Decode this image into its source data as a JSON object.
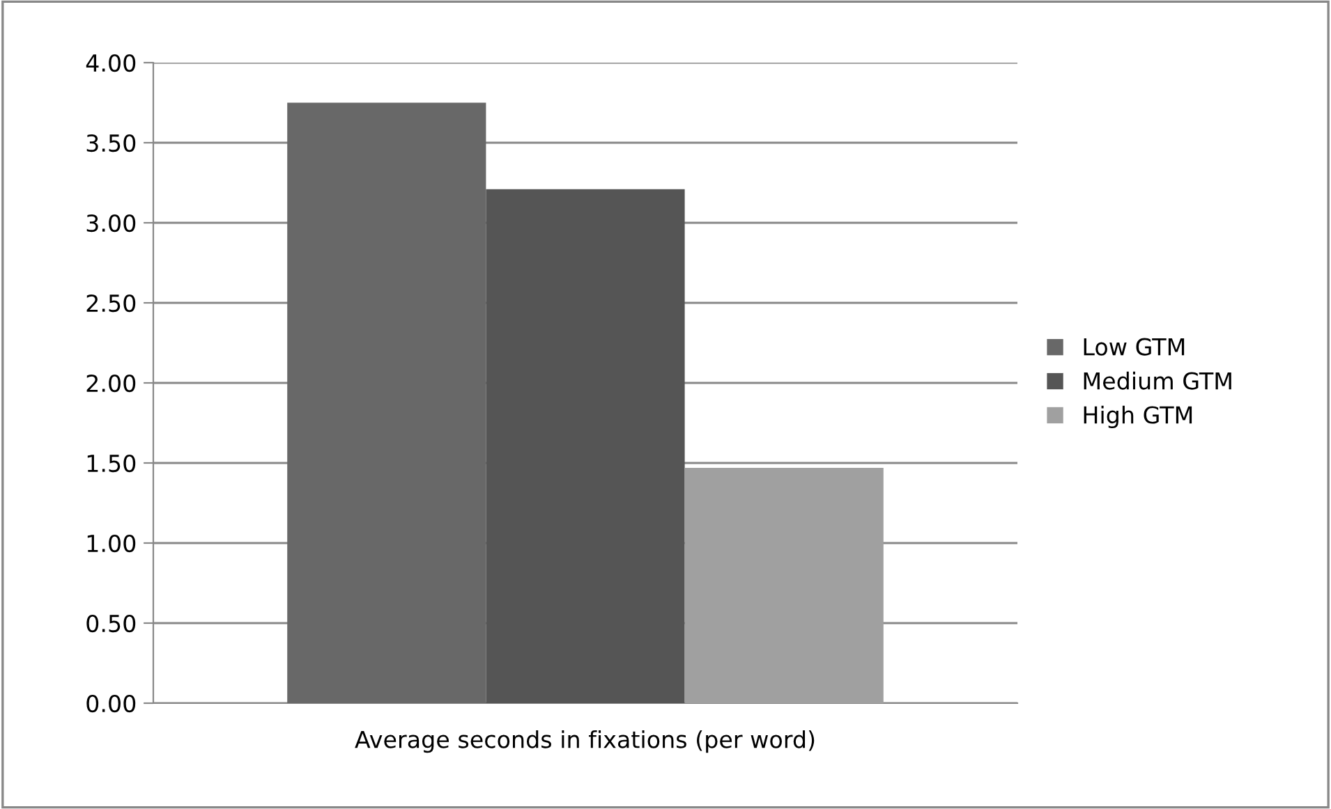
{
  "chart_data": {
    "type": "bar",
    "categories": [
      "Average seconds in fixations (per word)"
    ],
    "series": [
      {
        "name": "Low GTM",
        "color": "#686868",
        "values": [
          3.75
        ]
      },
      {
        "name": "Medium GTM",
        "color": "#555555",
        "values": [
          3.21
        ]
      },
      {
        "name": "High GTM",
        "color": "#a0a0a0",
        "values": [
          1.47
        ]
      }
    ],
    "ylim": [
      0,
      4
    ],
    "yticks": [
      {
        "value": 0,
        "label": "0.00"
      },
      {
        "value": 0.5,
        "label": "0.50"
      },
      {
        "value": 1,
        "label": "1.00"
      },
      {
        "value": 1.5,
        "label": "1.50"
      },
      {
        "value": 2,
        "label": "2.00"
      },
      {
        "value": 2.5,
        "label": "2.50"
      },
      {
        "value": 3,
        "label": "3.00"
      },
      {
        "value": 3.5,
        "label": "3.50"
      },
      {
        "value": 4,
        "label": "4.00"
      }
    ],
    "grid": "y",
    "legend": "right"
  }
}
